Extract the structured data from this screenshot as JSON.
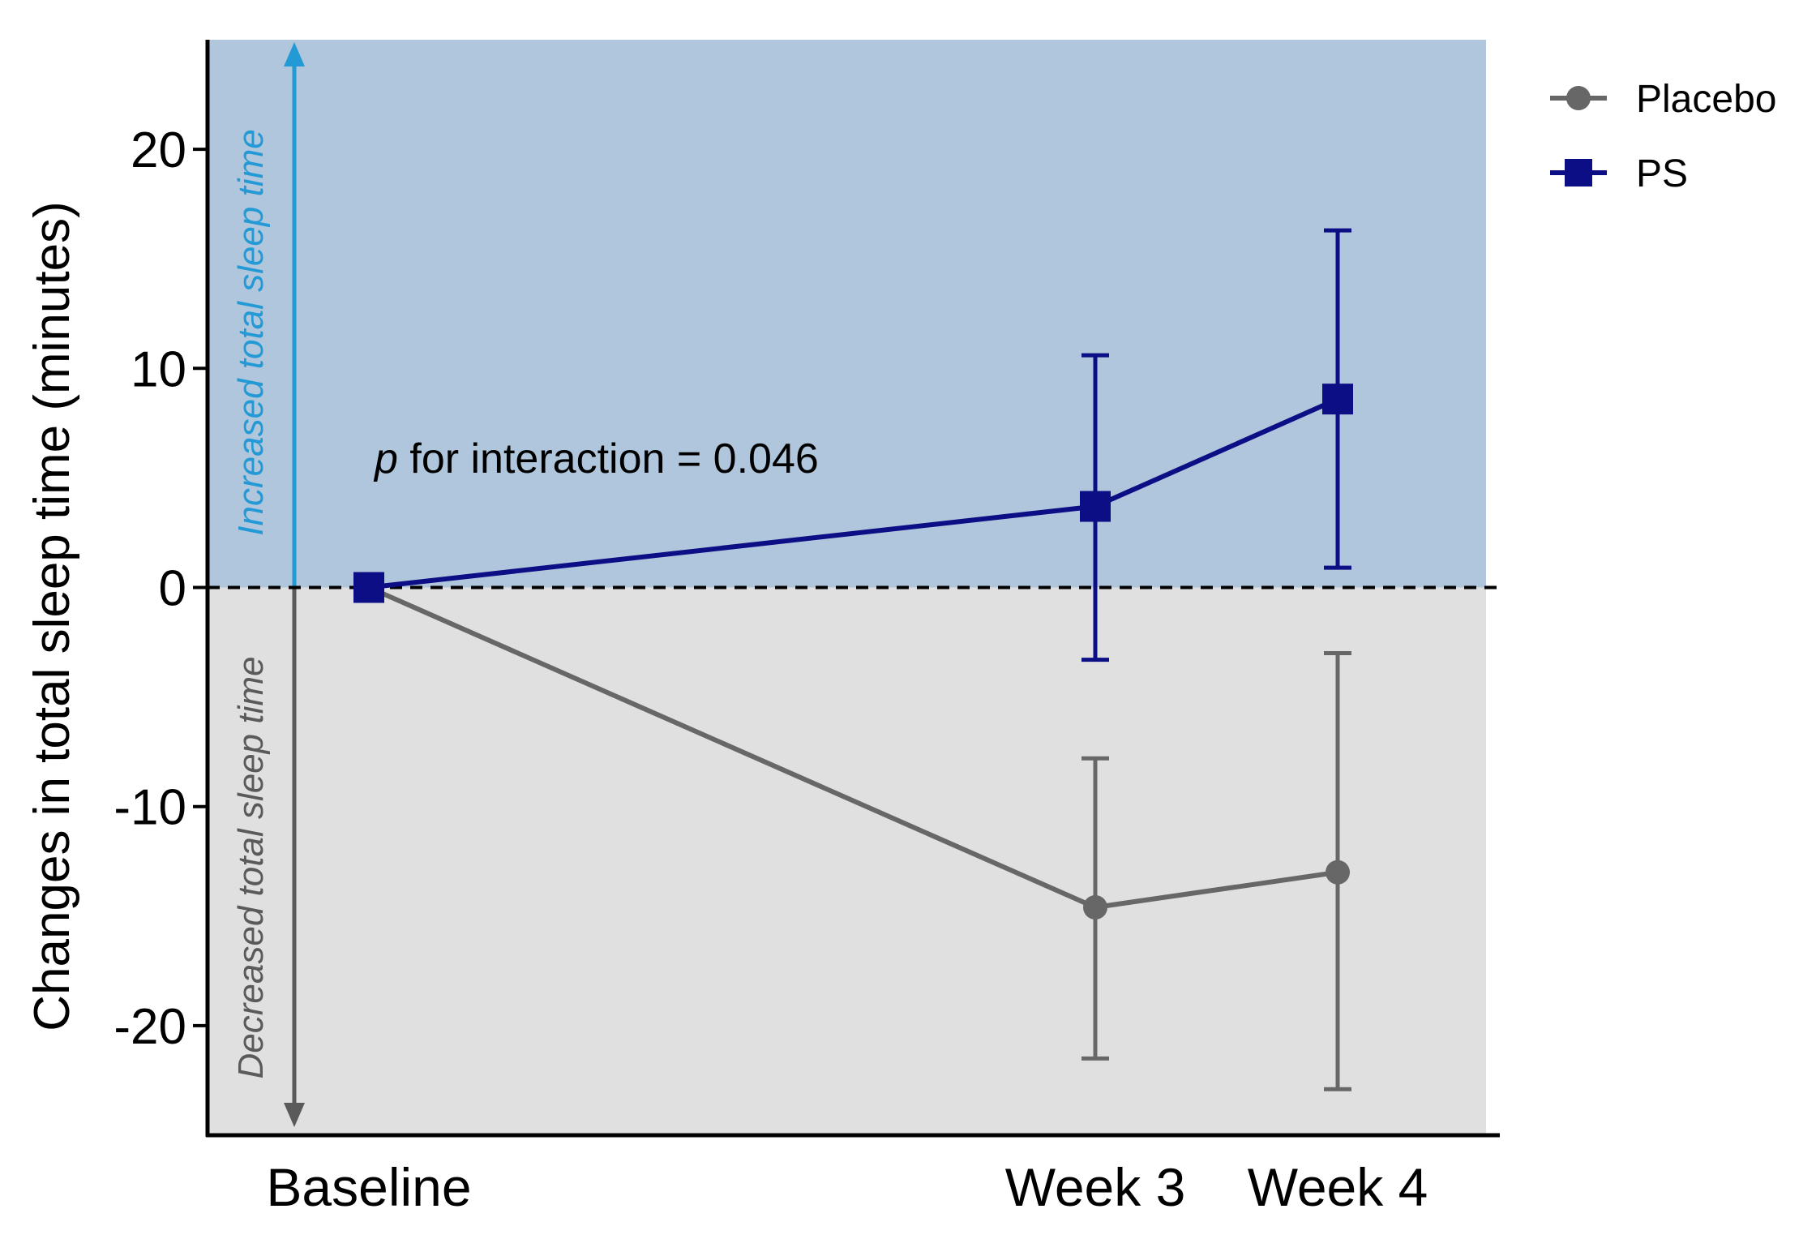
{
  "chart_data": {
    "type": "line",
    "title": "",
    "xlabel": "",
    "ylabel": "Changes in total sleep time (minutes)",
    "categories": [
      "Baseline",
      "Week 3",
      "Week 4"
    ],
    "x": [
      0,
      3,
      4
    ],
    "ylim": [
      -25,
      25
    ],
    "yticks": [
      -20,
      -10,
      0,
      10,
      20
    ],
    "ytick_labels": [
      "-20",
      "-10",
      "0",
      "10",
      "20"
    ],
    "grid": false,
    "legend_position": "top-right",
    "series": [
      {
        "name": "Placebo",
        "marker": "circle",
        "color": "#676767",
        "x": [
          0,
          3,
          4
        ],
        "values": [
          0,
          -14.6,
          -13.0
        ],
        "error_low": [
          null,
          -21.5,
          -22.9
        ],
        "error_high": [
          null,
          -7.8,
          -3.0
        ]
      },
      {
        "name": "PS",
        "marker": "square",
        "color": "#0b0e84",
        "x": [
          0,
          3,
          4
        ],
        "values": [
          0,
          3.7,
          8.6
        ],
        "error_low": [
          null,
          -3.3,
          0.9
        ],
        "error_high": [
          null,
          10.6,
          16.3
        ]
      }
    ],
    "regions": [
      {
        "name": "increase",
        "from": 0,
        "to": 25,
        "color": "#afc6dc"
      },
      {
        "name": "decrease",
        "from": -25,
        "to": 0,
        "color": "#e0e0e0"
      }
    ],
    "reference_line": {
      "y": 0,
      "style": "dashed",
      "color": "#000000"
    },
    "annotations": {
      "p_symbol": "p",
      "p_text": " for interaction = 0.046",
      "increase_label": "Increased total sleep time",
      "decrease_label": "Decreased total sleep time",
      "increase_color": "#239ad6",
      "decrease_color": "#5a5a5a"
    }
  }
}
